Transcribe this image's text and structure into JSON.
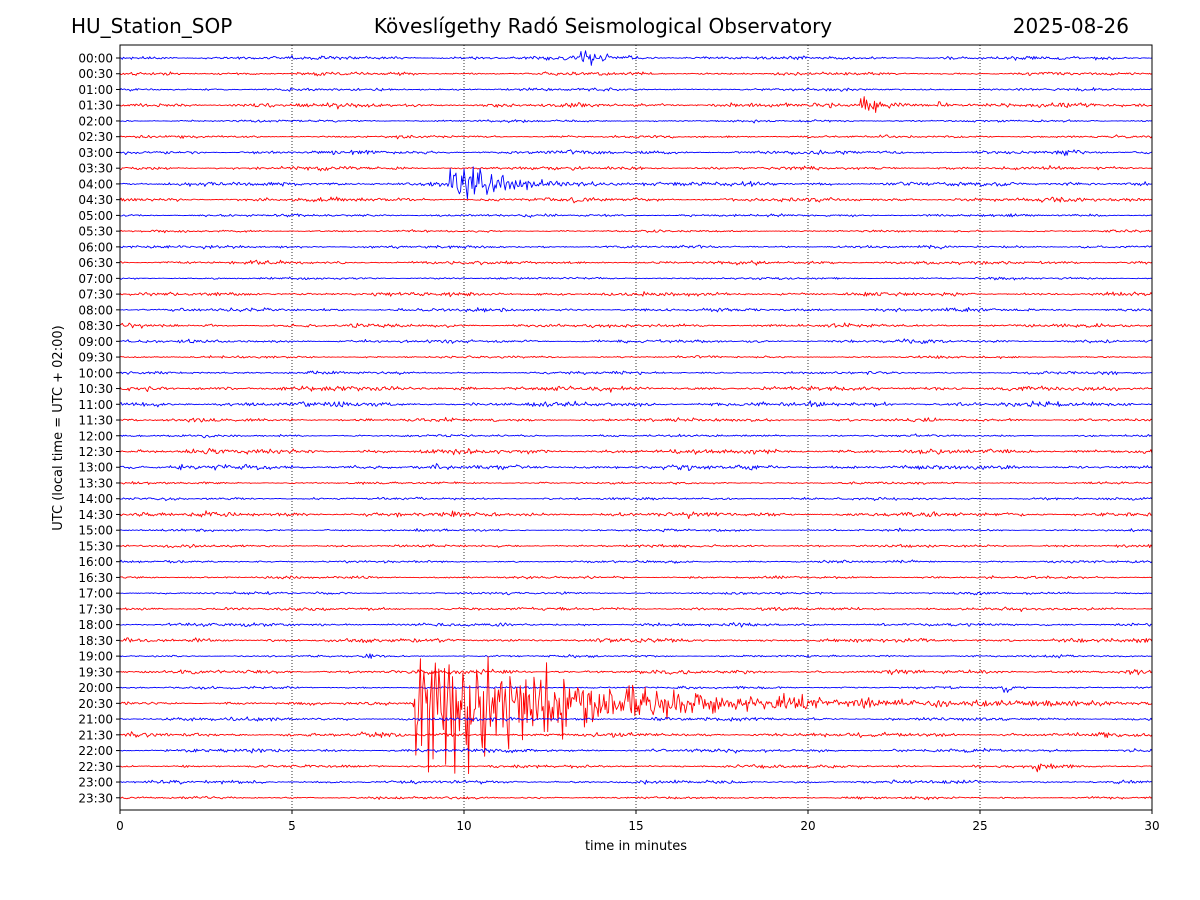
{
  "header": {
    "station": "HU_Station_SOP",
    "observatory": "Köveslígethy Radó Seismological Observatory",
    "date": "2025-08-26"
  },
  "chart_data": {
    "type": "line",
    "title": "Köveslígethy Radó Seismological Observatory",
    "xlabel": "time in minutes",
    "ylabel": "UTC (local time = UTC + 02:00)",
    "xlim": [
      0,
      30
    ],
    "x_ticks": [
      "0",
      "5",
      "10",
      "15",
      "20",
      "25",
      "30"
    ],
    "grid": "vertical dotted at x ticks",
    "row_labels": [
      "00:00",
      "00:30",
      "01:00",
      "01:30",
      "02:00",
      "02:30",
      "03:00",
      "03:30",
      "04:00",
      "04:30",
      "05:00",
      "05:30",
      "06:00",
      "06:30",
      "07:00",
      "07:30",
      "08:00",
      "08:30",
      "09:00",
      "09:30",
      "10:00",
      "10:30",
      "11:00",
      "11:30",
      "12:00",
      "12:30",
      "13:00",
      "13:30",
      "14:00",
      "14:30",
      "15:00",
      "15:30",
      "16:00",
      "16:30",
      "17:00",
      "17:30",
      "18:00",
      "18:30",
      "19:00",
      "19:30",
      "20:00",
      "20:30",
      "21:00",
      "21:30",
      "22:00",
      "22:30",
      "23:00",
      "23:30"
    ],
    "trace_colors": [
      "#0000ff",
      "#ff0000"
    ],
    "events": [
      {
        "row": "00:00",
        "minute": 13.4,
        "amplitude": "small",
        "duration_min": 1.5
      },
      {
        "row": "01:30",
        "minute": 21.5,
        "amplitude": "small",
        "duration_min": 2.0
      },
      {
        "row": "01:30",
        "minute": 23.8,
        "amplitude": "tiny",
        "duration_min": 0.6
      },
      {
        "row": "04:00",
        "minute": 9.6,
        "amplitude": "medium",
        "duration_min": 3.5
      },
      {
        "row": "19:00",
        "minute": 7.1,
        "amplitude": "tiny",
        "duration_min": 0.6
      },
      {
        "row": "20:00",
        "minute": 25.7,
        "amplitude": "tiny",
        "duration_min": 0.5
      },
      {
        "row": "20:30",
        "minute": 8.6,
        "amplitude": "large",
        "duration_min": 12.0
      },
      {
        "row": "22:30",
        "minute": 26.5,
        "amplitude": "tiny",
        "duration_min": 1.5
      }
    ]
  }
}
